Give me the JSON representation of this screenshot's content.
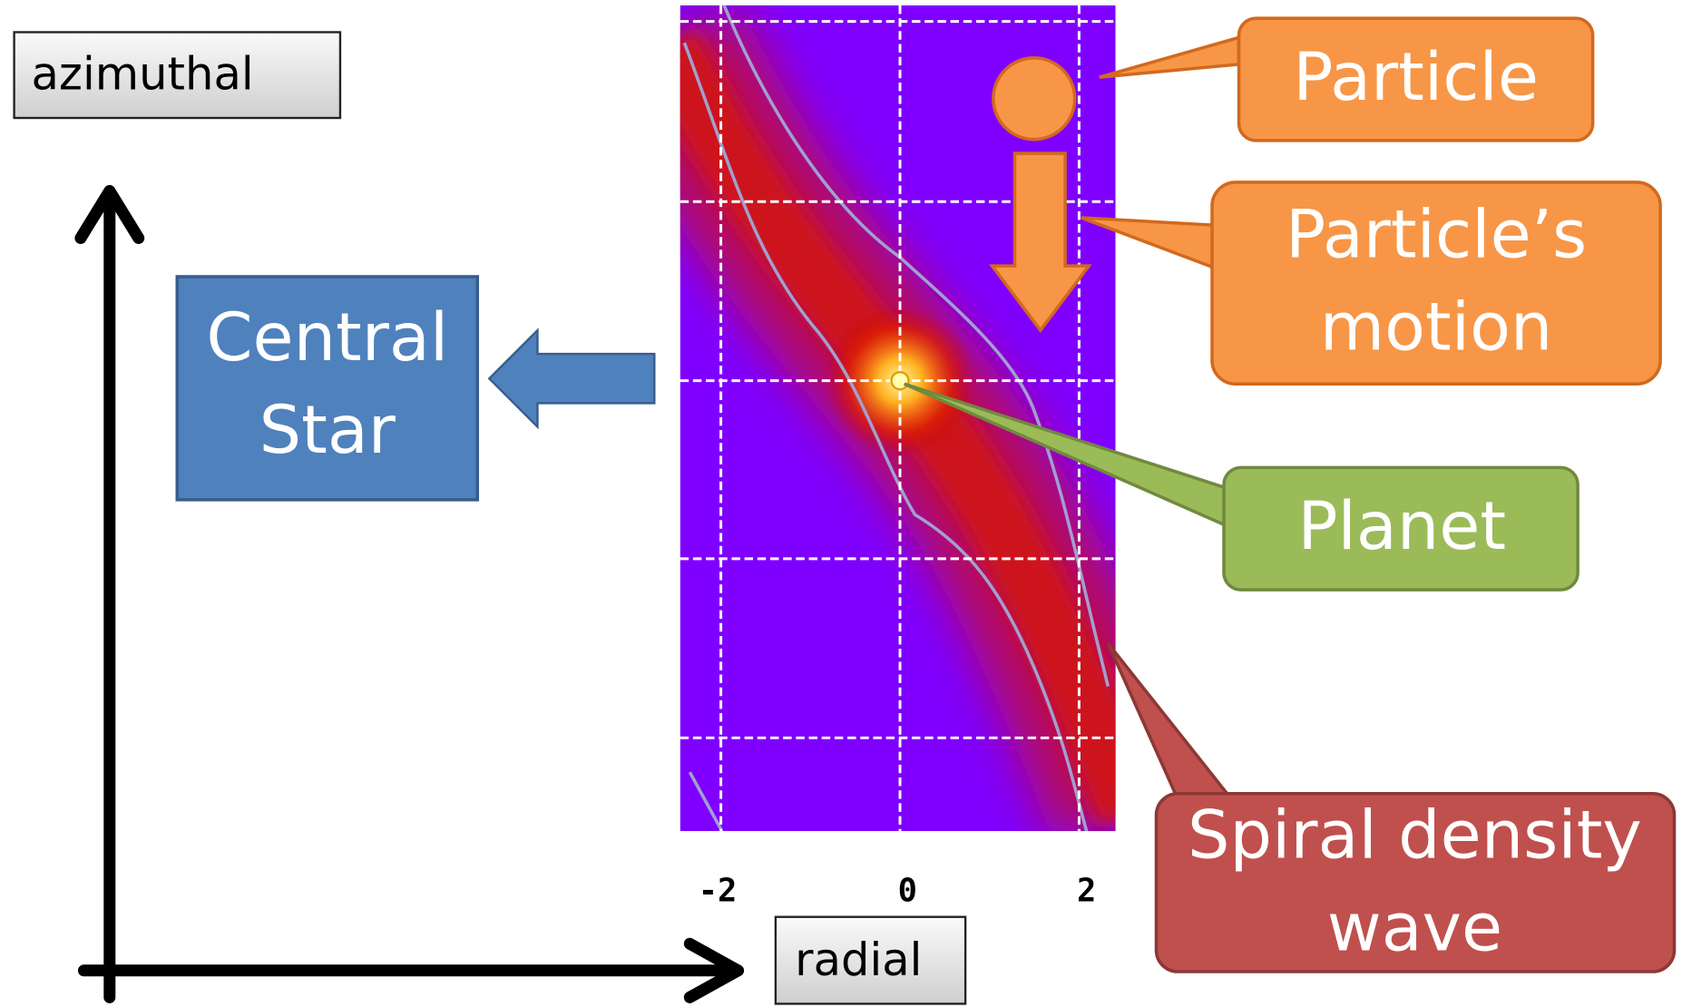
{
  "axes": {
    "vertical_label": "azimuthal",
    "horizontal_label": "radial"
  },
  "plot": {
    "tick_labels": [
      "-2",
      "0",
      "2"
    ]
  },
  "callouts": {
    "central_star": {
      "lines": [
        "Central",
        "Star"
      ]
    },
    "particle": {
      "lines": [
        "Particle"
      ]
    },
    "particle_motion": {
      "lines": [
        "Particle’s",
        "motion"
      ]
    },
    "planet": {
      "lines": [
        "Planet"
      ]
    },
    "spiral_wave": {
      "lines": [
        "Spiral density",
        "wave"
      ]
    }
  }
}
